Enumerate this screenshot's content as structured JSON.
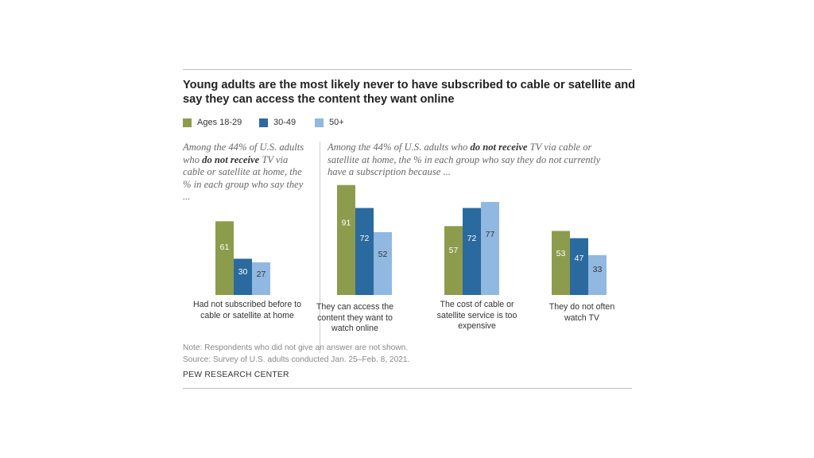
{
  "title": "Young adults are the most likely never to have subscribed to cable or satellite and say they can access the content they want online",
  "intro_left": {
    "before": "Among the 44% of U.S. adults who ",
    "bold": "do not receive",
    "after": " TV via cable or satellite at home, the % in each group who say they ..."
  },
  "intro_right": {
    "before": "Among the 44% of U.S. adults who ",
    "bold": "do not receive",
    "after": " TV via cable or satellite at home, the % in each group who say they do not currently have a subscription because ..."
  },
  "note": "Note: Respondents who did not give an answer are not shown.",
  "source": "Source: Survey of U.S. adults conducted Jan. 25–Feb. 8, 2021.",
  "brand": "PEW RESEARCH CENTER",
  "chart_data": {
    "type": "bar",
    "title": "Young adults are the most likely never to have subscribed to cable or satellite and say they can access the content they want online",
    "categories": [
      "Had not subscribed before to cable or satellite at home",
      "They can access the content they want to watch online",
      "The cost of cable or satellite service is too expensive",
      "They do not often watch TV"
    ],
    "series": [
      {
        "name": "Ages 18-29",
        "color": "#8c9c4c",
        "values": [
          61,
          91,
          57,
          53
        ]
      },
      {
        "name": "30-49",
        "color": "#2a6a9e",
        "values": [
          30,
          72,
          72,
          47
        ]
      },
      {
        "name": "50+",
        "color": "#91b8e0",
        "values": [
          27,
          52,
          77,
          33
        ]
      }
    ],
    "ylim": [
      0,
      100
    ],
    "grid": false,
    "legend": "top-left",
    "xlabel": "",
    "ylabel": ""
  }
}
